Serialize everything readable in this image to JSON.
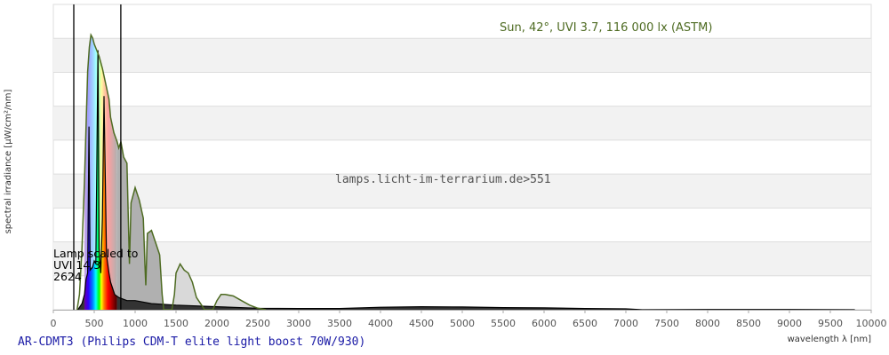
{
  "chart_data": {
    "type": "area",
    "title": "AR-CDMT3 (Philips CDM-T elite light boost 70W/930)",
    "xlabel": "wavelength λ [nm]",
    "ylabel": "spectral irradiance [µW/cm²/nm]",
    "xlim": [
      0,
      10000
    ],
    "ylim": [
      0,
      1
    ],
    "x_ticks": [
      0,
      500,
      1000,
      1500,
      2000,
      2500,
      3000,
      3500,
      4000,
      4500,
      5000,
      5500,
      6000,
      6500,
      7000,
      7500,
      8000,
      8500,
      9000,
      9500,
      10000
    ],
    "grid": "horizontal, alternating shaded bands",
    "markers_nm": [
      250,
      825
    ],
    "watermark": "lamps.licht-im-terrarium.de>551",
    "annotations": {
      "sun": "Sun, 42°, UVI 3.7, 116 000 lx (ASTM)",
      "lamp_lines": [
        "Lamp scaled to",
        "UVI 14.3",
        "2624"
      ]
    },
    "series": [
      {
        "name": "Sun, 42°, UVI 3.7, 116 000 lx (ASTM)",
        "color": "#4e6b22",
        "x": [
          290,
          320,
          350,
          380,
          400,
          420,
          440,
          460,
          480,
          500,
          530,
          560,
          600,
          640,
          680,
          700,
          740,
          780,
          800,
          826,
          860,
          900,
          930,
          950,
          1000,
          1050,
          1100,
          1120,
          1130,
          1150,
          1200,
          1250,
          1300,
          1330,
          1350,
          1400,
          1450,
          1480,
          1500,
          1550,
          1600,
          1650,
          1700,
          1750,
          1800,
          1850,
          1900,
          1950,
          2000,
          2050,
          2100,
          2200,
          2300,
          2400,
          2500,
          2600
        ],
        "y": [
          0,
          0.05,
          0.2,
          0.42,
          0.6,
          0.78,
          0.86,
          0.9,
          0.89,
          0.87,
          0.85,
          0.83,
          0.79,
          0.74,
          0.69,
          0.63,
          0.58,
          0.55,
          0.53,
          0.55,
          0.5,
          0.48,
          0.15,
          0.35,
          0.4,
          0.36,
          0.3,
          0.15,
          0.08,
          0.25,
          0.26,
          0.22,
          0.18,
          0.05,
          0.0,
          0.0,
          0.0,
          0.05,
          0.12,
          0.15,
          0.13,
          0.12,
          0.09,
          0.04,
          0.02,
          0.0,
          0.0,
          0.0,
          0.03,
          0.05,
          0.05,
          0.045,
          0.03,
          0.015,
          0.005,
          0
        ]
      },
      {
        "name": "Lamp scaled to UVI 14.3",
        "color": "#000000",
        "x": [
          300,
          350,
          380,
          400,
          420,
          436,
          450,
          480,
          500,
          520,
          546,
          560,
          580,
          600,
          620,
          650,
          680,
          700,
          750,
          800,
          900,
          1000,
          1200,
          1500,
          2000,
          2500,
          3000,
          3500,
          4000,
          4500,
          5000,
          5500,
          6000,
          6500,
          7000,
          7200,
          8000,
          9000,
          9800
        ],
        "y": [
          0,
          0.02,
          0.05,
          0.1,
          0.12,
          0.6,
          0.13,
          0.14,
          0.16,
          0.15,
          0.85,
          0.2,
          0.12,
          0.3,
          0.7,
          0.18,
          0.12,
          0.09,
          0.05,
          0.04,
          0.03,
          0.03,
          0.02,
          0.015,
          0.01,
          0.005,
          0.004,
          0.004,
          0.008,
          0.01,
          0.009,
          0.007,
          0.006,
          0.004,
          0.003,
          0,
          0.001,
          0.001,
          0
        ]
      }
    ]
  }
}
